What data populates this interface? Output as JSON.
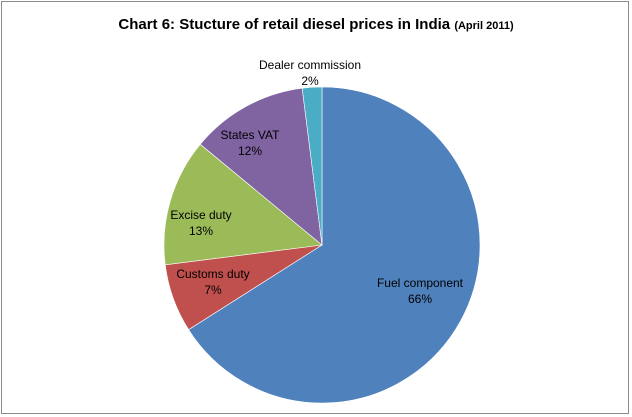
{
  "chart_data": {
    "type": "pie",
    "title": "Chart 6: Stucture of retail diesel prices in India",
    "subtitle": "(April 2011)",
    "slices": [
      {
        "label": "Fuel component",
        "value_label": "66%",
        "value": 66,
        "color": "#4f81bd"
      },
      {
        "label": "Customs duty",
        "value_label": "7%",
        "value": 7,
        "color": "#c0504d"
      },
      {
        "label": "Excise duty",
        "value_label": "13%",
        "value": 13,
        "color": "#9bbb59"
      },
      {
        "label": "States VAT",
        "value_label": "12%",
        "value": 12,
        "color": "#8064a2"
      },
      {
        "label": "Dealer commission",
        "value_label": "2%",
        "value": 2,
        "color": "#4bacc6"
      }
    ]
  }
}
